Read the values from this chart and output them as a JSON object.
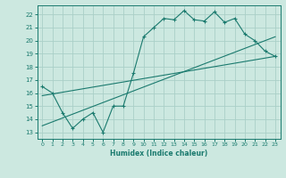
{
  "title": "",
  "xlabel": "Humidex (Indice chaleur)",
  "xlim": [
    -0.5,
    23.5
  ],
  "ylim": [
    12.5,
    22.7
  ],
  "yticks": [
    13,
    14,
    15,
    16,
    17,
    18,
    19,
    20,
    21,
    22
  ],
  "xticks": [
    0,
    1,
    2,
    3,
    4,
    5,
    6,
    7,
    8,
    9,
    10,
    11,
    12,
    13,
    14,
    15,
    16,
    17,
    18,
    19,
    20,
    21,
    22,
    23
  ],
  "bg_color": "#cce8e0",
  "line_color": "#1a7a6e",
  "grid_color": "#aacfc8",
  "data_x": [
    0,
    1,
    2,
    3,
    4,
    5,
    6,
    7,
    8,
    9,
    10,
    11,
    12,
    13,
    14,
    15,
    16,
    17,
    18,
    19,
    20,
    21,
    22,
    23
  ],
  "data_y": [
    16.5,
    16.0,
    14.5,
    13.3,
    14.0,
    14.5,
    13.0,
    15.0,
    15.0,
    17.5,
    20.3,
    21.0,
    21.7,
    21.6,
    22.3,
    21.6,
    21.5,
    22.2,
    21.4,
    21.7,
    20.5,
    20.0,
    19.2,
    18.8
  ],
  "line1_x": [
    0,
    23
  ],
  "line1_y": [
    15.8,
    18.8
  ],
  "line2_x": [
    0,
    23
  ],
  "line2_y": [
    13.5,
    20.3
  ]
}
